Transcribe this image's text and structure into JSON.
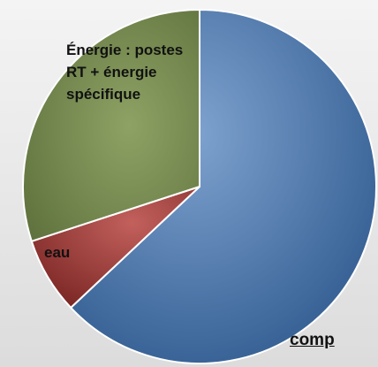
{
  "chart_data": {
    "type": "pie",
    "categories": [
      "comp",
      "eau",
      "Énergie : postes RT + énergie spécifique"
    ],
    "values": [
      63,
      7,
      30
    ],
    "colors": [
      "#4a76aa",
      "#9e3b38",
      "#74894c"
    ]
  }
}
